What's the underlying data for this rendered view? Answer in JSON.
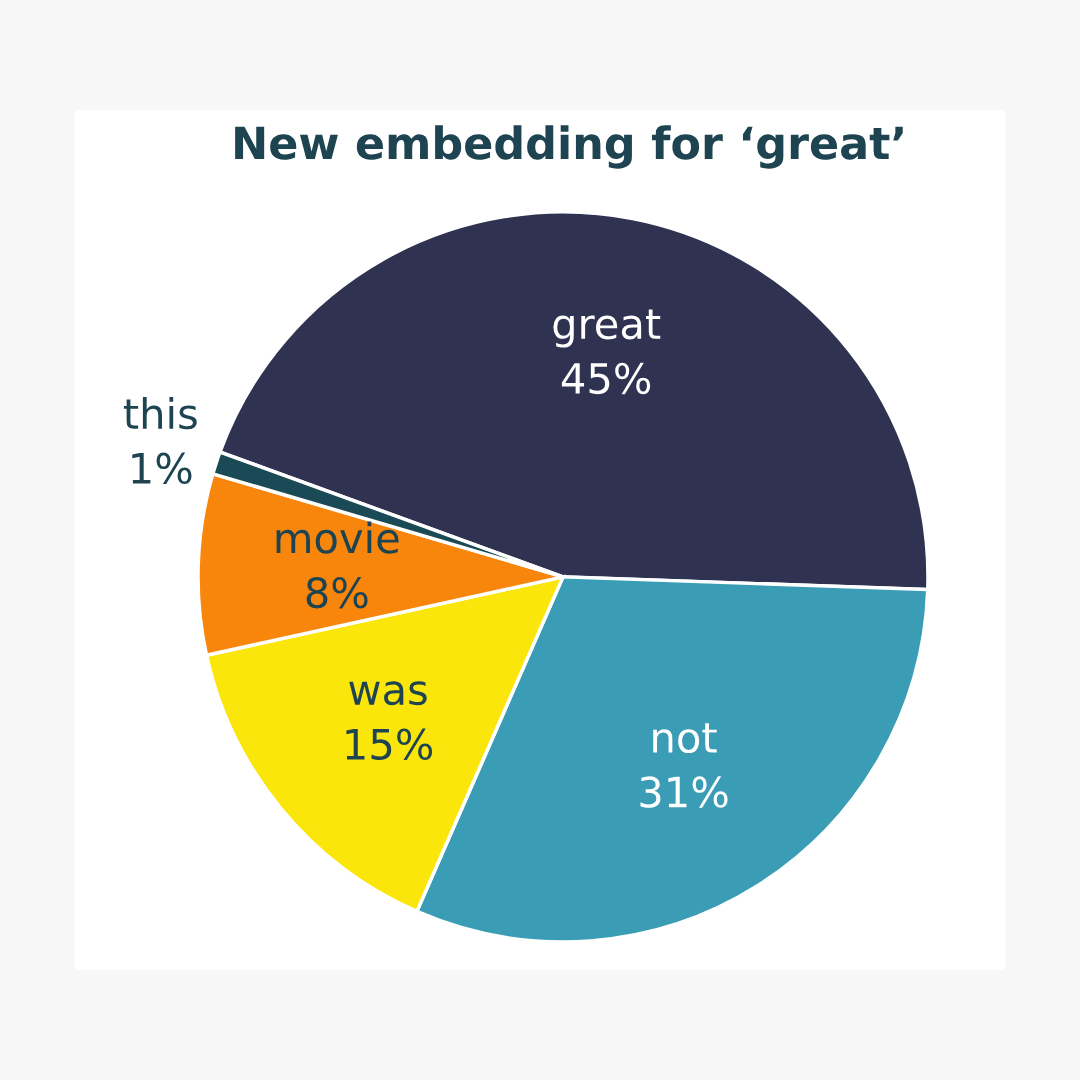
{
  "chart_data": {
    "type": "pie",
    "title": "New embedding for ‘great’",
    "categories": [
      "great",
      "not",
      "was",
      "movie",
      "this"
    ],
    "values": [
      45,
      31,
      15,
      8,
      1
    ],
    "value_labels": [
      "45%",
      "31%",
      "15%",
      "8%",
      "1%"
    ],
    "colors": [
      "#303252",
      "#3a9db5",
      "#fbe60c",
      "#f8860c",
      "#1a4a55"
    ]
  }
}
